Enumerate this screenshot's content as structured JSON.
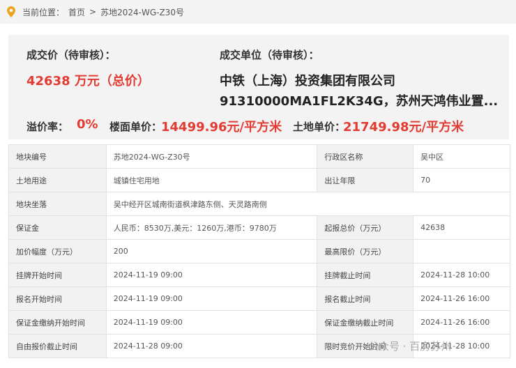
{
  "breadcrumb": {
    "label": "当前位置：",
    "home": "首页",
    "separator": ">",
    "current": "苏地2024-WG-Z30号"
  },
  "summary": {
    "price_label": "成交价（待审核）：",
    "price": "42638 万元（总价）",
    "buyer_label": "成交单位（待审核）：",
    "buyer_lines": [
      "中铁（上海）投资集团有限公司",
      "91310000MA1FL2K34G，苏州天鸿伟业置..."
    ],
    "premium_label": "溢价率：",
    "premium": "0%",
    "floor_price_label": "楼面单价：",
    "floor_price": "14499.96元/平方米",
    "land_price_label": "土地单价：",
    "land_price": "21749.98元/平方米"
  },
  "table": {
    "rows": [
      [
        "地块编号",
        "苏地2024-WG-Z30号",
        "行政区名称",
        "吴中区"
      ],
      [
        "土地用途",
        "城镇住宅用地",
        "出让年限",
        "70"
      ],
      [
        "地块坐落",
        "吴中经开区城南街道枫津路东侧、天灵路南侧"
      ],
      [
        "保证金",
        "人民币：8530万,美元：1260万,港币：9780万",
        "起报总价（万元）",
        "42638"
      ],
      [
        "加价幅度（万元）",
        "200",
        "最高限价（万元）"
      ],
      [
        "挂牌开始时间",
        "2024-11-19 09:00",
        "挂牌截止时间",
        "2024-11-28 10:00"
      ],
      [
        "报名开始时间",
        "2024-11-19 09:00",
        "报名截止时间",
        "2024-11-26 16:00"
      ],
      [
        "保证金缴纳开始时间",
        "2024-11-19 09:00",
        "保证金缴纳截止时间",
        "2024-11-26 16:00"
      ],
      [
        "自由报价截止时间",
        "2024-11-28 09:00",
        "限时竞价开始时间",
        "2024-11-28 10:00"
      ]
    ]
  },
  "watermark": "公众号 · 百房苏州"
}
